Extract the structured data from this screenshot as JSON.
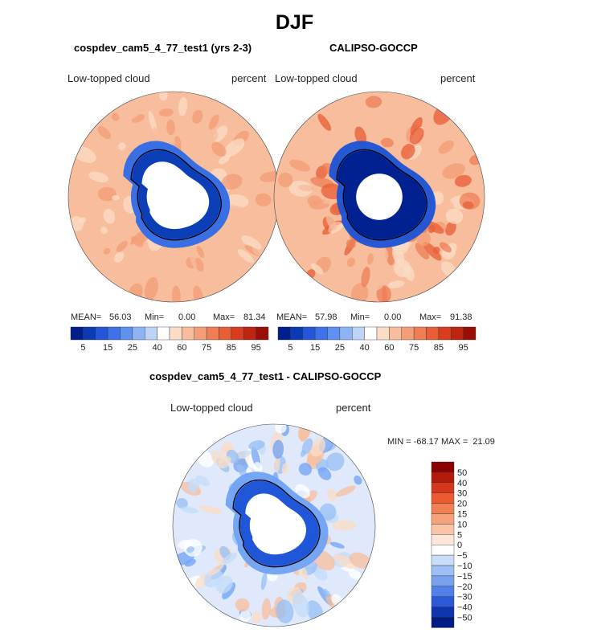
{
  "page_title": "DJF",
  "colors": {
    "neg": [
      "#001f8c",
      "#0a3bb5",
      "#1a52d6",
      "#2f6ae8",
      "#4c86f0",
      "#6fa2f4",
      "#97bff6",
      "#c3dbf9"
    ],
    "pos": [
      "#fbdcc6",
      "#f7bd9c",
      "#f39e77",
      "#ee7f55",
      "#e85e36",
      "#d83e1d",
      "#bd2412",
      "#990f07"
    ],
    "low_palette": [
      "#001f8c",
      "#0a3bb5",
      "#2356d8",
      "#3e72ea",
      "#6091f1",
      "#8db3f5",
      "#bdd3f8",
      "#ffffff",
      "#fbdcc6",
      "#f7bd9c",
      "#f39e77",
      "#ee7f55",
      "#e85e36",
      "#d83e1d",
      "#bd2412",
      "#990f07"
    ],
    "continent": "#ffffff",
    "coast": "#000000"
  },
  "chart_data": [
    {
      "type": "polar_contour",
      "subtitle": "cospdev_cam5_4_77_test1 (yrs 2-3)",
      "variable": "Low-topped cloud",
      "units": "percent",
      "mean_label": "MEAN=",
      "mean": "56.03",
      "min_label": "Min=",
      "min": "0.00",
      "max_label": "Max=",
      "max": "81.34",
      "colorbar_ticks": [
        "5",
        "15",
        "25",
        "40",
        "60",
        "75",
        "85",
        "95"
      ]
    },
    {
      "type": "polar_contour",
      "subtitle": "CALIPSO-GOCCP",
      "variable": "Low-topped cloud",
      "units": "percent",
      "mean_label": "MEAN=",
      "mean": "57.98",
      "min_label": "Min=",
      "min": "0.00",
      "max_label": "Max=",
      "max": "91.38",
      "colorbar_ticks": [
        "5",
        "15",
        "25",
        "40",
        "60",
        "75",
        "85",
        "95"
      ]
    },
    {
      "type": "polar_contour_difference",
      "subtitle": "cospdev_cam5_4_77_test1 - CALIPSO-GOCCP",
      "variable": "Low-topped cloud",
      "units": "percent",
      "minmax_text": "MIN = -68.17 MAX =  21.09",
      "colorbar_levels": [
        "50",
        "40",
        "30",
        "20",
        "15",
        "10",
        "5",
        "0",
        "−5",
        "−10",
        "−15",
        "−20",
        "−30",
        "−40",
        "−50"
      ]
    }
  ]
}
